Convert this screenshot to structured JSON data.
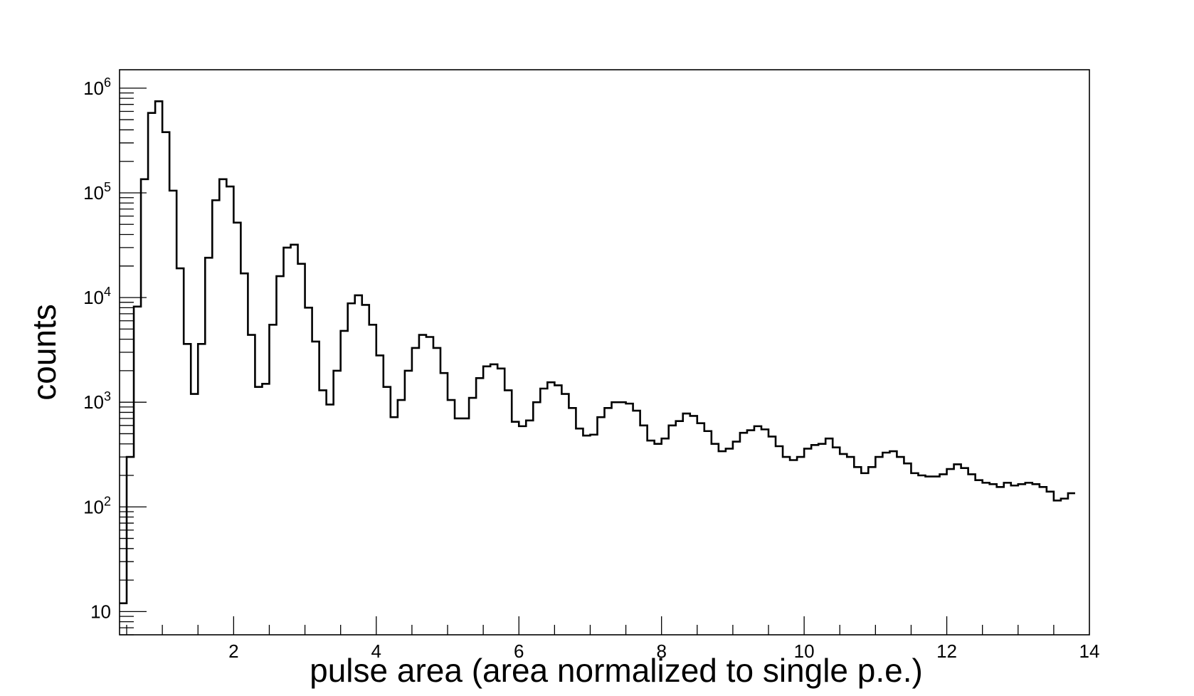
{
  "chart_data": {
    "type": "histogram",
    "title": "",
    "xlabel": "pulse area (area normalized to single p.e.)",
    "ylabel": "counts",
    "x_scale": "linear",
    "y_scale": "log",
    "xlim": [
      0.4,
      14
    ],
    "ylim": [
      6,
      1500000
    ],
    "grid": false,
    "legend": "none",
    "x_tick_labels": [
      "2",
      "4",
      "6",
      "8",
      "10",
      "12",
      "14"
    ],
    "y_tick_labels": [
      {
        "value": 10,
        "base": "10",
        "exp": ""
      },
      {
        "value": 100,
        "base": "10",
        "exp": "2"
      },
      {
        "value": 1000,
        "base": "10",
        "exp": "3"
      },
      {
        "value": 10000,
        "base": "10",
        "exp": "4"
      },
      {
        "value": 100000,
        "base": "10",
        "exp": "5"
      },
      {
        "value": 1000000,
        "base": "10",
        "exp": "6"
      }
    ],
    "line_color": "#000000",
    "bin_start": 0.4,
    "bin_width": 0.1,
    "counts": [
      12,
      300,
      8200,
      135000,
      580000,
      750000,
      380000,
      105000,
      19000,
      3600,
      1200,
      3600,
      24000,
      85000,
      135000,
      115000,
      52000,
      17000,
      4400,
      1400,
      1500,
      5500,
      16000,
      30000,
      32000,
      21000,
      8000,
      3800,
      1300,
      950,
      2000,
      4800,
      8800,
      10500,
      8500,
      5500,
      2800,
      1400,
      720,
      1050,
      2000,
      3300,
      4400,
      4200,
      3300,
      1900,
      1050,
      700,
      700,
      1100,
      1700,
      2200,
      2300,
      2100,
      1300,
      650,
      590,
      670,
      1000,
      1350,
      1550,
      1450,
      1200,
      880,
      560,
      480,
      490,
      720,
      880,
      1000,
      1000,
      970,
      830,
      600,
      430,
      400,
      450,
      600,
      660,
      780,
      740,
      630,
      530,
      400,
      340,
      360,
      420,
      510,
      540,
      590,
      550,
      470,
      380,
      300,
      280,
      300,
      360,
      390,
      400,
      450,
      370,
      320,
      300,
      240,
      210,
      240,
      300,
      330,
      340,
      300,
      260,
      210,
      200,
      195,
      195,
      205,
      230,
      255,
      235,
      205,
      180,
      170,
      165,
      155,
      170,
      160,
      165,
      170,
      165,
      155,
      140,
      115,
      120,
      135
    ]
  }
}
